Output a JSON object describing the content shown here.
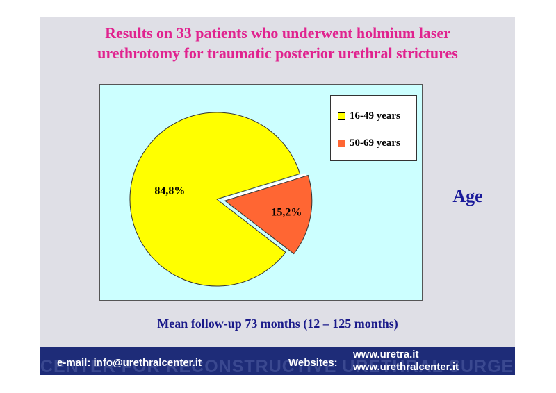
{
  "slide": {
    "title_line1": "Results on 33 patients who underwent holmium laser",
    "title_line2": "urethrotomy for traumatic posterior urethral strictures",
    "side_label": "Age",
    "follow_up": "Mean follow-up 73 months (12 – 125 months)"
  },
  "chart_data": {
    "type": "pie",
    "categories": [
      "16-49 years",
      "50-69 years"
    ],
    "values": [
      84.8,
      15.2
    ],
    "value_labels": [
      "84,8%",
      "15,2%"
    ],
    "colors": [
      "#ffff00",
      "#ff6633"
    ],
    "exploded_slice": "50-69 years",
    "legend_position": "top-right"
  },
  "footer": {
    "email": "e-mail: info@urethralcenter.it",
    "websites_label": "Websites:",
    "site1": "www.uretra.it",
    "site2": "www.urethralcenter.it",
    "watermark": "CENTER FOR RECONSTRUCTIVE URETHRAL SURGERY"
  },
  "colors": {
    "title": "#e0238f",
    "slide_bg": "#dfdfe6",
    "plot_bg": "#ccffff",
    "text_blue": "#1a1a8a",
    "footer_bg": "#1e2c78"
  }
}
